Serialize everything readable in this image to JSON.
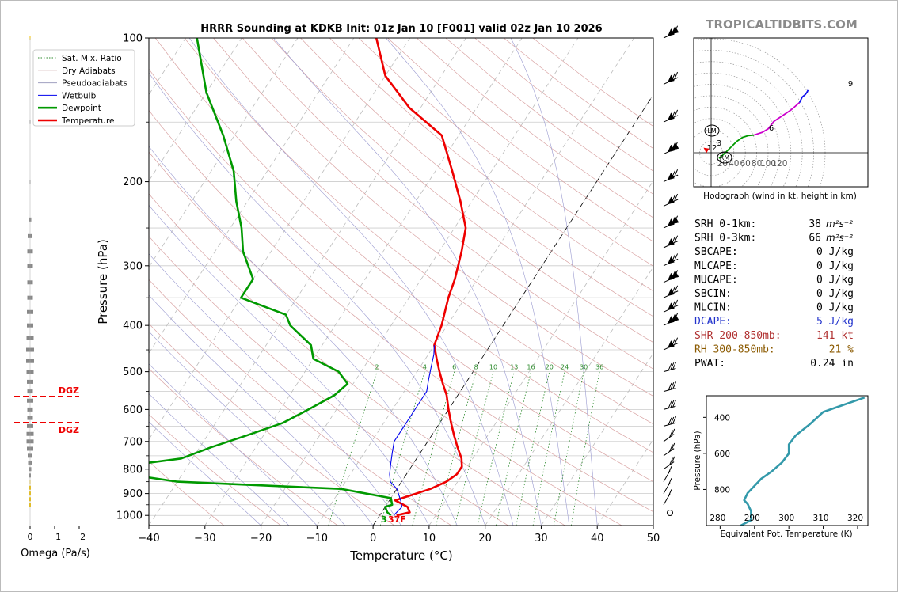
{
  "title": "HRRR Sounding at KDKB Init: 01z Jan 10 [F001] valid 02z Jan 10 2026",
  "watermark": "TROPICALTIDBITS.COM",
  "skewt": {
    "xlabel": "Temperature (°C)",
    "ylabel": "Pressure (hPa)",
    "xlim": [
      -40,
      50
    ],
    "ylim": [
      1050,
      100
    ],
    "x_ticks": [
      "−40",
      "−30",
      "−20",
      "−10",
      "0",
      "10",
      "20",
      "30",
      "40",
      "50"
    ],
    "y_ticks": [
      "100",
      "200",
      "300",
      "400",
      "500",
      "600",
      "700",
      "800",
      "900",
      "1000"
    ],
    "legend": [
      {
        "label": "Sat. Mix. Ratio",
        "color": "#2e8b2e",
        "style": "dotted"
      },
      {
        "label": "Dry Adiabats",
        "color": "#c8a0a0",
        "style": "solid"
      },
      {
        "label": "Pseudoadiabats",
        "color": "#a0a0c0",
        "style": "solid"
      },
      {
        "label": "Wetbulb",
        "color": "#0000ee",
        "style": "solid"
      },
      {
        "label": "Dewpoint",
        "color": "#009900",
        "style": "thick"
      },
      {
        "label": "Temperature",
        "color": "#ee0000",
        "style": "thick"
      }
    ],
    "mixing_ratio_labels": [
      "2",
      "4",
      "6",
      "8",
      "10",
      "13",
      "16",
      "20",
      "24",
      "30",
      "36"
    ],
    "surface_labels": {
      "dewpoint": "3",
      "temperature": "37F"
    },
    "colors": {
      "temperature": "#ee0000",
      "dewpoint": "#009900",
      "wetbulb": "#0000ee"
    }
  },
  "omega": {
    "xlabel": "Omega (Pa/s)",
    "x_ticks": [
      "0",
      "−1",
      "−2"
    ],
    "dgz_label": "DGZ"
  },
  "hodograph": {
    "caption": "Hodograph (wind in kt, height in km)",
    "ring_labels": [
      "20",
      "40",
      "60",
      "80",
      "100",
      "120"
    ],
    "height_labels": [
      "12",
      "3",
      "6",
      "9"
    ],
    "storm_motion_labels": [
      "LM",
      "RM"
    ]
  },
  "params": [
    {
      "label": "SRH 0-1km:",
      "value": "38",
      "unit": "m2s-2",
      "color": "#000000"
    },
    {
      "label": "SRH 0-3km:",
      "value": "66",
      "unit": "m2s-2",
      "color": "#000000"
    },
    {
      "label": "SBCAPE:",
      "value": "0 J/kg",
      "color": "#000000"
    },
    {
      "label": "MLCAPE:",
      "value": "0 J/kg",
      "color": "#000000"
    },
    {
      "label": "MUCAPE:",
      "value": "0 J/kg",
      "color": "#000000"
    },
    {
      "label": "SBCIN:",
      "value": "0 J/kg",
      "color": "#000000"
    },
    {
      "label": "MLCIN:",
      "value": "0 J/kg",
      "color": "#000000"
    },
    {
      "label": "DCAPE:",
      "value": "5 J/kg",
      "color": "#2233cc"
    },
    {
      "label": "SHR 200-850mb:",
      "value": "141 kt",
      "color": "#b03030"
    },
    {
      "label": "RH 300-850mb:",
      "value": "21 %",
      "color": "#8b5a00"
    },
    {
      "label": "PWAT:",
      "value": "0.24 in",
      "color": "#000000"
    }
  ],
  "theta_e": {
    "xlabel": "Equivalent Pot. Temperature (K)",
    "ylabel": "Pressure (hPa)",
    "x_ticks": [
      "280",
      "290",
      "300",
      "310",
      "320"
    ],
    "y_ticks": [
      "400",
      "600",
      "800"
    ]
  },
  "chart_data": [
    {
      "type": "line",
      "title": "HRRR Sounding at KDKB Init: 01z Jan 10 [F001] valid 02z Jan 10 2026",
      "xlabel": "Temperature (°C)",
      "ylabel": "Pressure (hPa)",
      "xlim": [
        -40,
        50
      ],
      "ylim": [
        1050,
        100
      ],
      "y_scale": "log",
      "skew": "skew-T",
      "series": [
        {
          "name": "Temperature",
          "x": [
            3,
            5,
            4,
            1,
            3,
            6,
            8,
            9,
            9,
            8,
            6,
            4,
            2,
            0,
            -2,
            -4,
            -6,
            -8,
            -10,
            -11,
            -13,
            -14,
            -16,
            -18,
            -22,
            -27,
            -33,
            -42,
            -50,
            -56
          ],
          "y": [
            1000,
            985,
            960,
            930,
            910,
            880,
            850,
            820,
            790,
            760,
            720,
            680,
            640,
            600,
            560,
            530,
            500,
            470,
            440,
            400,
            350,
            320,
            280,
            250,
            220,
            190,
            160,
            140,
            120,
            100
          ]
        },
        {
          "name": "Dewpoint",
          "x": [
            2,
            1,
            0,
            1,
            0,
            -10,
            -40,
            -50,
            -52,
            -42,
            -38,
            -33,
            -28,
            -25,
            -22,
            -21,
            -24,
            -30,
            -32,
            -38,
            -40,
            -50,
            -50,
            -55,
            -58,
            -62,
            -66,
            -72,
            -80,
            -88
          ],
          "y": [
            1000,
            985,
            960,
            950,
            920,
            880,
            850,
            820,
            790,
            760,
            720,
            680,
            640,
            600,
            560,
            530,
            500,
            470,
            440,
            400,
            380,
            350,
            320,
            280,
            250,
            220,
            190,
            160,
            130,
            100
          ]
        },
        {
          "name": "Wetbulb",
          "x": [
            2.5,
            3,
            2,
            0,
            -2,
            -3,
            -4,
            -5,
            -6,
            -6,
            -6,
            -6,
            -6,
            -7,
            -8,
            -9,
            -10
          ],
          "y": [
            1000,
            960,
            930,
            880,
            850,
            820,
            780,
            740,
            700,
            660,
            620,
            580,
            550,
            520,
            490,
            460,
            440
          ]
        }
      ]
    },
    {
      "type": "line",
      "xlabel": "Equivalent Pot. Temperature (K)",
      "ylabel": "Pressure (hPa)",
      "xlim": [
        278,
        325
      ],
      "ylim": [
        1000,
        280
      ],
      "series": [
        {
          "x": [
            288,
            291,
            291,
            290,
            289,
            290,
            292,
            294,
            297,
            300,
            302,
            302,
            304,
            308,
            312,
            318,
            324
          ],
          "y": [
            1000,
            970,
            920,
            880,
            860,
            820,
            780,
            740,
            700,
            650,
            600,
            550,
            500,
            440,
            370,
            330,
            290
          ]
        }
      ]
    },
    {
      "type": "scatter",
      "xlabel": "u (kt)",
      "ylabel": "v (kt)",
      "series": [
        {
          "name": "Hodograph 0-3 km",
          "x": [
            14,
            25,
            35
          ],
          "y": [
            -10,
            0,
            10
          ]
        },
        {
          "name": "Hodograph 3-6 km",
          "x": [
            35,
            45,
            55,
            65,
            75
          ],
          "y": [
            10,
            20,
            27,
            30,
            31
          ]
        },
        {
          "name": "Hodograph 6-9 km",
          "x": [
            75,
            90,
            100,
            110,
            125,
            140,
            148,
            155
          ],
          "y": [
            31,
            36,
            42,
            55,
            65,
            75,
            82,
            88
          ]
        },
        {
          "name": "Hodograph 9-12 km",
          "x": [
            155,
            160,
            165,
            168,
            170
          ],
          "y": [
            88,
            98,
            102,
            106,
            110
          ]
        }
      ]
    }
  ]
}
